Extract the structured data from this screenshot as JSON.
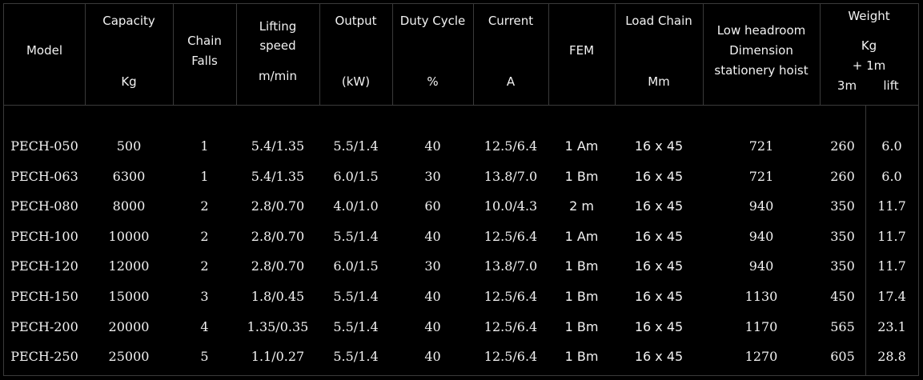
{
  "headers": {
    "model": "Model",
    "capacity": "Capacity",
    "capacity_unit": "Kg",
    "chain_falls_1": "Chain",
    "chain_falls_2": "Falls",
    "lifting_speed_1": "Lifting",
    "lifting_speed_2": "speed",
    "lifting_speed_unit": "m/min",
    "output": "Output",
    "output_unit": "(kW)",
    "duty_cycle": "Duty Cycle",
    "duty_cycle_unit": "%",
    "current": "Current",
    "current_unit": "A",
    "fem": "FEM",
    "load_chain": "Load Chain",
    "load_chain_unit": "Mm",
    "low_headroom_1": "Low headroom",
    "low_headroom_2": "Dimension",
    "low_headroom_3": "stationery hoist",
    "weight": "Weight",
    "weight_unit": "Kg",
    "weight_extra": "+ 1m",
    "weight_3m": "3m",
    "weight_lift": "lift"
  },
  "rows": [
    {
      "model": "PECH-050",
      "capacity": "500",
      "falls": "1",
      "speed": "5.4/1.35",
      "output": "5.5/1.4",
      "duty": "40",
      "current": "12.5/6.4",
      "fem": "1 Am",
      "chain": "16 x 45",
      "headroom": "721",
      "w3m": "260",
      "wlift": "6.0"
    },
    {
      "model": "PECH-063",
      "capacity": "6300",
      "falls": "1",
      "speed": "5.4/1.35",
      "output": "6.0/1.5",
      "duty": "30",
      "current": "13.8/7.0",
      "fem": "1 Bm",
      "chain": "16 x 45",
      "headroom": "721",
      "w3m": "260",
      "wlift": "6.0"
    },
    {
      "model": "PECH-080",
      "capacity": "8000",
      "falls": "2",
      "speed": "2.8/0.70",
      "output": "4.0/1.0",
      "duty": "60",
      "current": "10.0/4.3",
      "fem": "2 m",
      "chain": "16 x 45",
      "headroom": "940",
      "w3m": "350",
      "wlift": "11.7"
    },
    {
      "model": "PECH-100",
      "capacity": "10000",
      "falls": "2",
      "speed": "2.8/0.70",
      "output": "5.5/1.4",
      "duty": "40",
      "current": "12.5/6.4",
      "fem": "1 Am",
      "chain": "16 x 45",
      "headroom": "940",
      "w3m": "350",
      "wlift": "11.7"
    },
    {
      "model": "PECH-120",
      "capacity": "12000",
      "falls": "2",
      "speed": "2.8/0.70",
      "output": "6.0/1.5",
      "duty": "30",
      "current": "13.8/7.0",
      "fem": "1 Bm",
      "chain": "16 x 45",
      "headroom": "940",
      "w3m": "350",
      "wlift": "11.7"
    },
    {
      "model": "PECH-150",
      "capacity": "15000",
      "falls": "3",
      "speed": "1.8/0.45",
      "output": "5.5/1.4",
      "duty": "40",
      "current": "12.5/6.4",
      "fem": "1 Bm",
      "chain": "16 x 45",
      "headroom": "1130",
      "w3m": "450",
      "wlift": "17.4"
    },
    {
      "model": "PECH-200",
      "capacity": "20000",
      "falls": "4",
      "speed": "1.35/0.35",
      "output": "5.5/1.4",
      "duty": "40",
      "current": "12.5/6.4",
      "fem": "1 Bm",
      "chain": "16 x 45",
      "headroom": "1170",
      "w3m": "565",
      "wlift": "23.1"
    },
    {
      "model": "PECH-250",
      "capacity": "25000",
      "falls": "5",
      "speed": "1.1/0.27",
      "output": "5.5/1.4",
      "duty": "40",
      "current": "12.5/6.4",
      "fem": "1 Bm",
      "chain": "16 x 45",
      "headroom": "1270",
      "w3m": "605",
      "wlift": "28.8"
    }
  ]
}
